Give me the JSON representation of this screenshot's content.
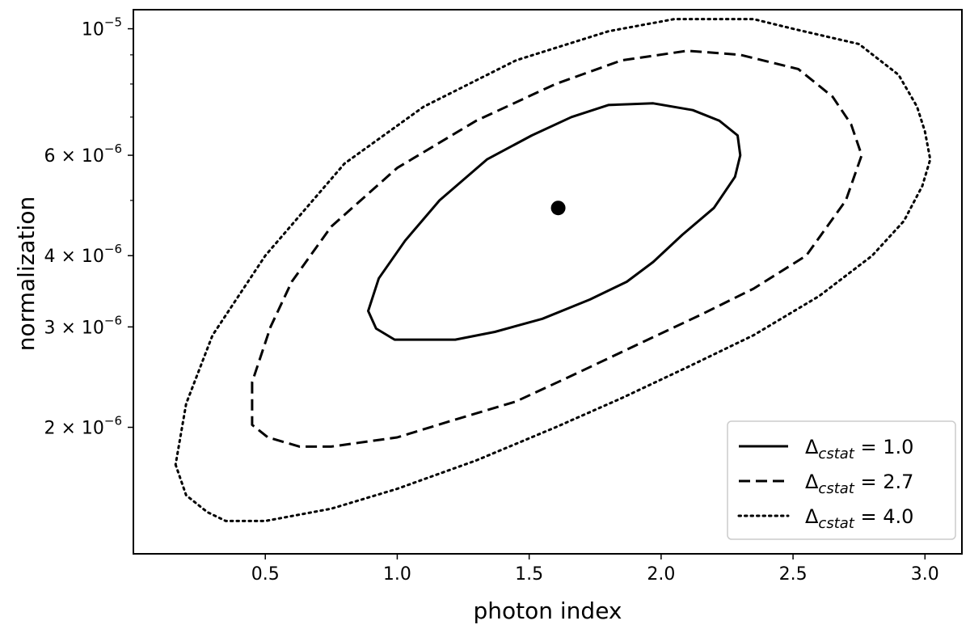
{
  "chart_data": {
    "type": "line",
    "xlabel": "photon index",
    "ylabel": "normalization",
    "xlim": [
      0.0,
      3.14
    ],
    "ylim": [
      1.2e-06,
      1.08e-05
    ],
    "yscale": "log",
    "grid": false,
    "legend_position": "bottom-right",
    "x_ticks": [
      {
        "value": 0.5,
        "label": "0.5"
      },
      {
        "value": 1.0,
        "label": "1.0"
      },
      {
        "value": 1.5,
        "label": "1.5"
      },
      {
        "value": 2.0,
        "label": "2.0"
      },
      {
        "value": 2.5,
        "label": "2.5"
      },
      {
        "value": 3.0,
        "label": "3.0"
      }
    ],
    "y_ticks": [
      {
        "value": 1e-05,
        "mantissa": "",
        "base": "10",
        "exponent": "−5"
      },
      {
        "value": 6e-06,
        "mantissa": "6 × ",
        "base": "10",
        "exponent": "−6"
      },
      {
        "value": 4e-06,
        "mantissa": "4 × ",
        "base": "10",
        "exponent": "−6"
      },
      {
        "value": 3e-06,
        "mantissa": "3 × ",
        "base": "10",
        "exponent": "−6"
      },
      {
        "value": 2e-06,
        "mantissa": "2 × ",
        "base": "10",
        "exponent": "−6"
      }
    ],
    "y_minor_ticks": [
      5e-06,
      7e-06,
      8e-06,
      9e-06
    ],
    "best_fit": {
      "x": 1.61,
      "y": 4.85e-06
    },
    "series": [
      {
        "name": "Δ",
        "sub": "cstat",
        "value_text": " = 1.0",
        "dash": "solid",
        "points": [
          [
            0.99,
            2.85e-06
          ],
          [
            1.22,
            2.85e-06
          ],
          [
            1.37,
            2.94e-06
          ],
          [
            1.55,
            3.1e-06
          ],
          [
            1.73,
            3.35e-06
          ],
          [
            1.87,
            3.6e-06
          ],
          [
            1.97,
            3.9e-06
          ],
          [
            2.08,
            4.35e-06
          ],
          [
            2.2,
            4.85e-06
          ],
          [
            2.28,
            5.5e-06
          ],
          [
            2.3,
            6e-06
          ],
          [
            2.29,
            6.5e-06
          ],
          [
            2.22,
            6.9e-06
          ],
          [
            2.12,
            7.2e-06
          ],
          [
            1.97,
            7.4e-06
          ],
          [
            1.8,
            7.35e-06
          ],
          [
            1.66,
            7e-06
          ],
          [
            1.51,
            6.5e-06
          ],
          [
            1.34,
            5.9e-06
          ],
          [
            1.16,
            5e-06
          ],
          [
            1.03,
            4.25e-06
          ],
          [
            0.93,
            3.65e-06
          ],
          [
            0.89,
            3.2e-06
          ],
          [
            0.92,
            2.98e-06
          ],
          [
            0.99,
            2.85e-06
          ]
        ]
      },
      {
        "name": "Δ",
        "sub": "cstat",
        "value_text": " = 2.7",
        "dash": "dashed",
        "points": [
          [
            0.45,
            2.4e-06
          ],
          [
            0.45,
            2.02e-06
          ],
          [
            0.51,
            1.92e-06
          ],
          [
            0.63,
            1.85e-06
          ],
          [
            0.75,
            1.85e-06
          ],
          [
            1.0,
            1.92e-06
          ],
          [
            1.2,
            2.05e-06
          ],
          [
            1.45,
            2.22e-06
          ],
          [
            1.65,
            2.45e-06
          ],
          [
            1.95,
            2.85e-06
          ],
          [
            2.15,
            3.15e-06
          ],
          [
            2.35,
            3.5e-06
          ],
          [
            2.55,
            4e-06
          ],
          [
            2.7,
            5e-06
          ],
          [
            2.76,
            6e-06
          ],
          [
            2.72,
            6.8e-06
          ],
          [
            2.65,
            7.6e-06
          ],
          [
            2.52,
            8.5e-06
          ],
          [
            2.3,
            9e-06
          ],
          [
            2.1,
            9.15e-06
          ],
          [
            1.85,
            8.8e-06
          ],
          [
            1.6,
            8e-06
          ],
          [
            1.3,
            6.9e-06
          ],
          [
            1.0,
            5.7e-06
          ],
          [
            0.75,
            4.5e-06
          ],
          [
            0.6,
            3.6e-06
          ],
          [
            0.52,
            3e-06
          ],
          [
            0.45,
            2.4e-06
          ]
        ]
      },
      {
        "name": "Δ",
        "sub": "cstat",
        "value_text": " = 4.0",
        "dash": "dotted",
        "points": [
          [
            0.16,
            1.72e-06
          ],
          [
            0.2,
            1.52e-06
          ],
          [
            0.28,
            1.42e-06
          ],
          [
            0.35,
            1.37e-06
          ],
          [
            0.5,
            1.37e-06
          ],
          [
            0.75,
            1.44e-06
          ],
          [
            1.0,
            1.56e-06
          ],
          [
            1.3,
            1.75e-06
          ],
          [
            1.6,
            2e-06
          ],
          [
            1.85,
            2.25e-06
          ],
          [
            2.1,
            2.55e-06
          ],
          [
            2.35,
            2.9e-06
          ],
          [
            2.6,
            3.4e-06
          ],
          [
            2.8,
            4e-06
          ],
          [
            2.92,
            4.6e-06
          ],
          [
            2.99,
            5.3e-06
          ],
          [
            3.02,
            5.9e-06
          ],
          [
            3.0,
            6.6e-06
          ],
          [
            2.97,
            7.3e-06
          ],
          [
            2.9,
            8.3e-06
          ],
          [
            2.75,
            9.4e-06
          ],
          [
            2.5,
            1e-05
          ],
          [
            2.35,
            1.04e-05
          ],
          [
            2.05,
            1.04e-05
          ],
          [
            1.8,
            9.9e-06
          ],
          [
            1.45,
            8.8e-06
          ],
          [
            1.1,
            7.3e-06
          ],
          [
            0.8,
            5.8e-06
          ],
          [
            0.5,
            4e-06
          ],
          [
            0.3,
            2.9e-06
          ],
          [
            0.2,
            2.2e-06
          ],
          [
            0.16,
            1.72e-06
          ]
        ]
      }
    ]
  }
}
